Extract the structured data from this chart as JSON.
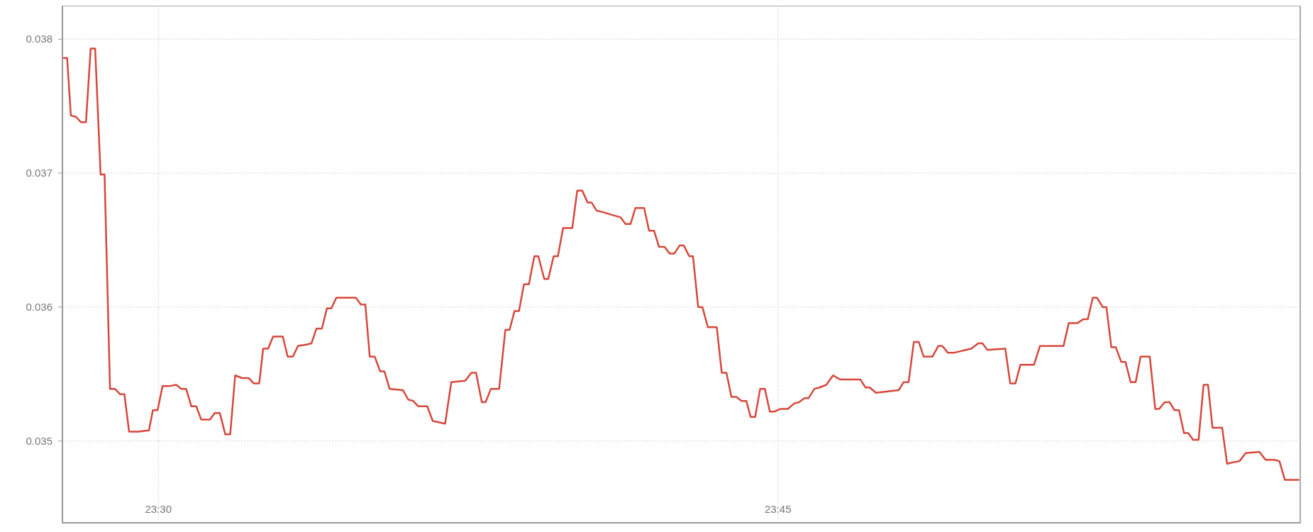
{
  "chart_data": {
    "type": "line",
    "xlim": [
      23.4613,
      23.9607
    ],
    "xticks": [
      {
        "value": 23.5,
        "label": "23:30"
      },
      {
        "value": 23.75,
        "label": "23:45"
      }
    ],
    "ylim": [
      0.03439,
      0.03825
    ],
    "yticks": [
      0.035,
      0.036,
      0.037,
      0.038
    ],
    "grid": true,
    "marker": "none",
    "line_style": "solid",
    "series": [
      {
        "color": "#d6473b",
        "x": [
          23.4613,
          23.4632,
          23.4647,
          23.4668,
          23.4688,
          23.4708,
          23.4727,
          23.4745,
          23.4767,
          23.4783,
          23.4805,
          23.4825,
          23.4845,
          23.4863,
          23.4882,
          23.492,
          23.4962,
          23.4978,
          23.4997,
          23.5017,
          23.5043,
          23.5072,
          23.5092,
          23.5112,
          23.5133,
          23.5153,
          23.5173,
          23.5208,
          23.5228,
          23.5248,
          23.527,
          23.529,
          23.531,
          23.5338,
          23.5365,
          23.5385,
          23.5407,
          23.5423,
          23.5443,
          23.5463,
          23.5502,
          23.5522,
          23.5543,
          23.5563,
          23.5598,
          23.5618,
          23.5638,
          23.566,
          23.568,
          23.5698,
          23.5718,
          23.5797,
          23.5817,
          23.5835,
          23.5853,
          23.5873,
          23.5895,
          23.5912,
          23.5933,
          23.5987,
          23.6008,
          23.6028,
          23.6048,
          23.6085,
          23.6107,
          23.6157,
          23.6182,
          23.6238,
          23.6263,
          23.6282,
          23.6305,
          23.632,
          23.6342,
          23.6375,
          23.64,
          23.6417,
          23.6437,
          23.6455,
          23.6475,
          23.6495,
          23.6517,
          23.6533,
          23.6557,
          23.6573,
          23.6595,
          23.6612,
          23.6633,
          23.667,
          23.669,
          23.671,
          23.6732,
          23.6748,
          23.6768,
          23.6792,
          23.6827,
          23.6865,
          23.6885,
          23.6905,
          23.6925,
          23.696,
          23.698,
          23.7,
          23.702,
          23.7042,
          23.7063,
          23.7082,
          23.7103,
          23.712,
          23.7142,
          23.7157,
          23.7178,
          23.7195,
          23.7217,
          23.7253,
          23.7273,
          23.7292,
          23.7312,
          23.7332,
          23.7353,
          23.7372,
          23.739,
          23.7408,
          23.7428,
          23.7447,
          23.7467,
          23.7485,
          23.751,
          23.754,
          23.7565,
          23.7585,
          23.7607,
          23.7623,
          23.7647,
          23.7668,
          23.7695,
          23.7722,
          23.775,
          23.7797,
          23.7832,
          23.7853,
          23.787,
          23.7895,
          23.7938,
          23.7987,
          23.8007,
          23.8027,
          23.8048,
          23.8068,
          23.8088,
          23.8123,
          23.8147,
          23.8163,
          23.8185,
          23.8212,
          23.828,
          23.8308,
          23.8325,
          23.8345,
          23.8417,
          23.8437,
          23.8458,
          23.8478,
          23.8533,
          23.8557,
          23.8595,
          23.8652,
          23.8673,
          23.8708,
          23.8732,
          23.875,
          23.877,
          23.8787,
          23.881,
          23.8825,
          23.8845,
          23.8863,
          23.8885,
          23.8902,
          23.8923,
          23.8943,
          23.8963,
          23.9,
          23.9022,
          23.9038,
          23.906,
          23.908,
          23.91,
          23.9118,
          23.9138,
          23.9155,
          23.9175,
          23.9197,
          23.9217,
          23.9235,
          23.9253,
          23.9292,
          23.9312,
          23.9332,
          23.9362,
          23.9387,
          23.9442,
          23.9467,
          23.9503,
          23.9523,
          23.9545,
          23.9603
        ],
        "values": [
          0.03786,
          0.03786,
          0.03743,
          0.03742,
          0.03738,
          0.03738,
          0.03793,
          0.03793,
          0.03699,
          0.03699,
          0.03539,
          0.03539,
          0.03535,
          0.03535,
          0.03507,
          0.03507,
          0.03508,
          0.03523,
          0.03523,
          0.03541,
          0.03541,
          0.03542,
          0.03539,
          0.03539,
          0.03526,
          0.03526,
          0.03516,
          0.03516,
          0.03521,
          0.03521,
          0.03505,
          0.03505,
          0.03549,
          0.03547,
          0.03547,
          0.03543,
          0.03543,
          0.03569,
          0.03569,
          0.03578,
          0.03578,
          0.03563,
          0.03563,
          0.03571,
          0.03572,
          0.03573,
          0.03584,
          0.03584,
          0.03599,
          0.03599,
          0.03607,
          0.03607,
          0.03602,
          0.03602,
          0.03563,
          0.03563,
          0.03552,
          0.03552,
          0.03539,
          0.03538,
          0.03531,
          0.0353,
          0.03526,
          0.03526,
          0.03515,
          0.03513,
          0.03544,
          0.03545,
          0.03551,
          0.03551,
          0.03529,
          0.03529,
          0.03539,
          0.03539,
          0.03583,
          0.03583,
          0.03597,
          0.03597,
          0.03617,
          0.03617,
          0.03638,
          0.03638,
          0.03621,
          0.03621,
          0.03638,
          0.03638,
          0.03659,
          0.03659,
          0.03687,
          0.03687,
          0.03678,
          0.03678,
          0.03672,
          0.03671,
          0.03669,
          0.03667,
          0.03662,
          0.03662,
          0.03674,
          0.03674,
          0.03657,
          0.03657,
          0.03645,
          0.03645,
          0.0364,
          0.0364,
          0.03646,
          0.03646,
          0.03638,
          0.03638,
          0.036,
          0.036,
          0.03585,
          0.03585,
          0.03551,
          0.03551,
          0.03533,
          0.03533,
          0.0353,
          0.0353,
          0.03518,
          0.03518,
          0.03539,
          0.03539,
          0.03522,
          0.03522,
          0.03524,
          0.03524,
          0.03528,
          0.03529,
          0.03532,
          0.03532,
          0.03539,
          0.0354,
          0.03542,
          0.03549,
          0.03546,
          0.03546,
          0.03546,
          0.0354,
          0.0354,
          0.03536,
          0.03537,
          0.03538,
          0.03544,
          0.03544,
          0.03574,
          0.03574,
          0.03563,
          0.03563,
          0.03571,
          0.03571,
          0.03566,
          0.03566,
          0.03569,
          0.03573,
          0.03573,
          0.03568,
          0.03569,
          0.03543,
          0.03543,
          0.03557,
          0.03557,
          0.03571,
          0.03571,
          0.03571,
          0.03588,
          0.03588,
          0.03591,
          0.03591,
          0.03607,
          0.03607,
          0.036,
          0.036,
          0.0357,
          0.0357,
          0.03559,
          0.03559,
          0.03544,
          0.03544,
          0.03563,
          0.03563,
          0.03524,
          0.03524,
          0.03529,
          0.03529,
          0.03523,
          0.03523,
          0.03506,
          0.03506,
          0.03501,
          0.03501,
          0.03542,
          0.03542,
          0.0351,
          0.0351,
          0.03483,
          0.03484,
          0.03485,
          0.03491,
          0.03492,
          0.03486,
          0.03486,
          0.03485,
          0.03471,
          0.03471
        ]
      }
    ]
  }
}
